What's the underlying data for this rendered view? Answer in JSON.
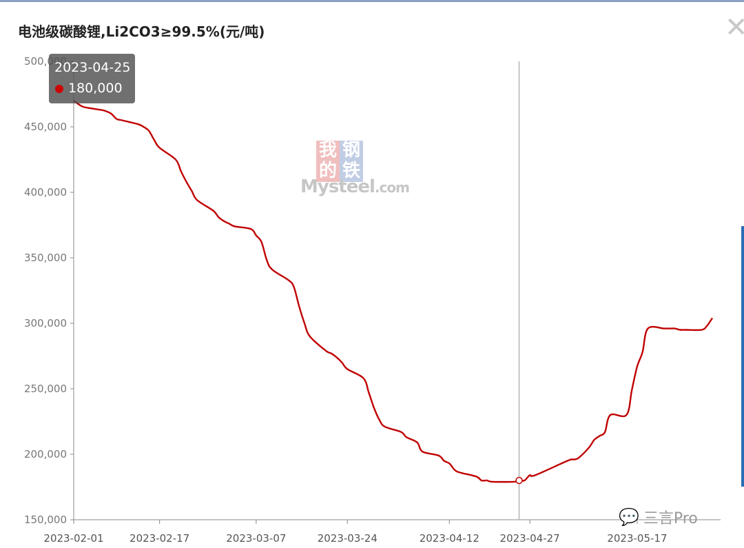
{
  "title": "电池级碳酸锂,Li2CO3≥99.5%(元/吨)",
  "close_glyph": "✕",
  "tooltip": {
    "date": "2023-04-25",
    "value": "180,000",
    "marker_color": "#cc0000"
  },
  "watermark": {
    "char1": "我的",
    "char2": "钢铁",
    "text": "Mysteel",
    "suffix": ".com"
  },
  "brand": {
    "icon": "wechat-icon",
    "label": "三言Pro"
  },
  "colors": {
    "line": "#c00000",
    "axis": "#888888",
    "crosshair": "#b4b4b4"
  },
  "chart_data": {
    "type": "line",
    "title": "电池级碳酸锂,Li2CO3≥99.5%(元/吨)",
    "xlabel": "",
    "ylabel": "",
    "ylim": [
      150000,
      500000
    ],
    "yticks": [
      150000,
      200000,
      250000,
      300000,
      350000,
      400000,
      450000,
      500000
    ],
    "ytick_labels": [
      "150,000",
      "200,000",
      "250,000",
      "300,000",
      "350,000",
      "400,000",
      "450,000",
      "500,000"
    ],
    "xlim": [
      "2023-02-01",
      "2023-05-31"
    ],
    "xtick_labels": [
      "2023-02-01",
      "2023-02-17",
      "2023-03-07",
      "2023-03-24",
      "2023-04-12",
      "2023-04-27",
      "2023-05-17"
    ],
    "highlight": {
      "x": "2023-04-25",
      "y": 180000
    },
    "series": [
      {
        "values": [
          [
            "2023-02-01",
            470000
          ],
          [
            "2023-02-02",
            467000
          ],
          [
            "2023-02-03",
            465000
          ],
          [
            "2023-02-06",
            463000
          ],
          [
            "2023-02-07",
            462000
          ],
          [
            "2023-02-08",
            460000
          ],
          [
            "2023-02-09",
            456000
          ],
          [
            "2023-02-10",
            455000
          ],
          [
            "2023-02-13",
            452000
          ],
          [
            "2023-02-14",
            450000
          ],
          [
            "2023-02-15",
            447000
          ],
          [
            "2023-02-16",
            440000
          ],
          [
            "2023-02-17",
            434000
          ],
          [
            "2023-02-20",
            425000
          ],
          [
            "2023-02-21",
            416000
          ],
          [
            "2023-02-22",
            408000
          ],
          [
            "2023-02-23",
            401000
          ],
          [
            "2023-02-24",
            394000
          ],
          [
            "2023-02-27",
            386000
          ],
          [
            "2023-02-28",
            381000
          ],
          [
            "2023-03-01",
            378000
          ],
          [
            "2023-03-02",
            376000
          ],
          [
            "2023-03-03",
            374000
          ],
          [
            "2023-03-06",
            372000
          ],
          [
            "2023-03-07",
            367000
          ],
          [
            "2023-03-08",
            362000
          ],
          [
            "2023-03-09",
            348000
          ],
          [
            "2023-03-10",
            341000
          ],
          [
            "2023-03-13",
            333000
          ],
          [
            "2023-03-14",
            328000
          ],
          [
            "2023-03-15",
            313000
          ],
          [
            "2023-03-16",
            300000
          ],
          [
            "2023-03-17",
            290000
          ],
          [
            "2023-03-20",
            279000
          ],
          [
            "2023-03-21",
            277000
          ],
          [
            "2023-03-22",
            274000
          ],
          [
            "2023-03-23",
            270000
          ],
          [
            "2023-03-24",
            265000
          ],
          [
            "2023-03-27",
            258000
          ],
          [
            "2023-03-28",
            247000
          ],
          [
            "2023-03-29",
            235000
          ],
          [
            "2023-03-30",
            226000
          ],
          [
            "2023-03-31",
            221000
          ],
          [
            "2023-04-03",
            217000
          ],
          [
            "2023-04-04",
            213000
          ],
          [
            "2023-04-06",
            209000
          ],
          [
            "2023-04-07",
            202000
          ],
          [
            "2023-04-10",
            199000
          ],
          [
            "2023-04-11",
            195000
          ],
          [
            "2023-04-12",
            193000
          ],
          [
            "2023-04-13",
            188000
          ],
          [
            "2023-04-14",
            186000
          ],
          [
            "2023-04-17",
            183000
          ],
          [
            "2023-04-18",
            180000
          ],
          [
            "2023-04-19",
            180000
          ],
          [
            "2023-04-20",
            179000
          ],
          [
            "2023-04-24",
            179000
          ],
          [
            "2023-04-25",
            180000
          ],
          [
            "2023-04-26",
            180000
          ],
          [
            "2023-04-27",
            184000
          ],
          [
            "2023-04-28",
            184000
          ],
          [
            "2023-05-04",
            195000
          ],
          [
            "2023-05-05",
            196000
          ],
          [
            "2023-05-06",
            197000
          ],
          [
            "2023-05-08",
            205000
          ],
          [
            "2023-05-09",
            211000
          ],
          [
            "2023-05-10",
            214000
          ],
          [
            "2023-05-11",
            217000
          ],
          [
            "2023-05-12",
            230000
          ],
          [
            "2023-05-15",
            230000
          ],
          [
            "2023-05-16",
            249000
          ],
          [
            "2023-05-17",
            267000
          ],
          [
            "2023-05-18",
            278000
          ],
          [
            "2023-05-19",
            296000
          ],
          [
            "2023-05-22",
            296000
          ],
          [
            "2023-05-23",
            296000
          ],
          [
            "2023-05-24",
            296000
          ],
          [
            "2023-05-25",
            295000
          ],
          [
            "2023-05-26",
            295000
          ],
          [
            "2023-05-29",
            295000
          ],
          [
            "2023-05-30",
            298000
          ],
          [
            "2023-05-31",
            304000
          ]
        ]
      }
    ]
  }
}
